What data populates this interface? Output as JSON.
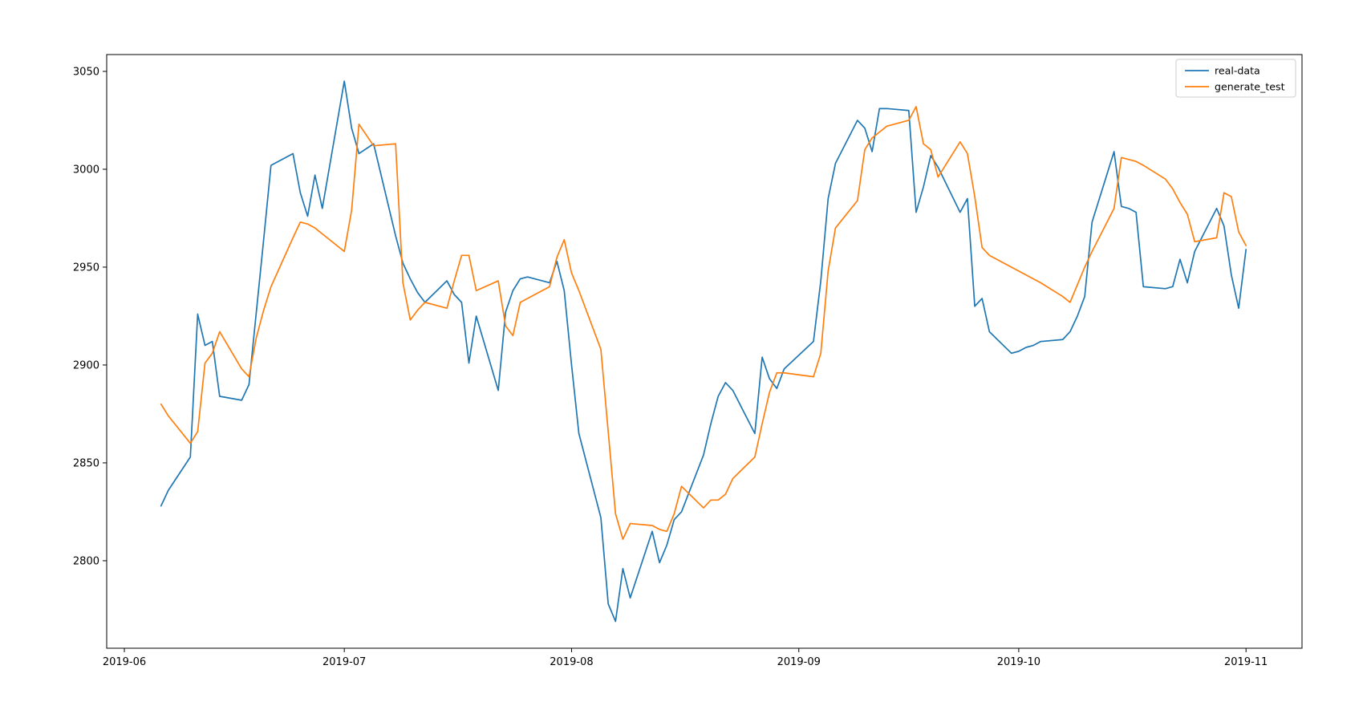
{
  "chart_data": {
    "type": "line",
    "title": "",
    "xlabel": "",
    "ylabel": "",
    "grid": false,
    "legend_position": "upper right",
    "legend_entries": [
      "real-data",
      "generate_test"
    ],
    "x_tick_labels": [
      "2019-06",
      "2019-07",
      "2019-08",
      "2019-09",
      "2019-10",
      "2019-11"
    ],
    "x_tick_dates": [
      "2019-06-01",
      "2019-07-01",
      "2019-08-01",
      "2019-09-01",
      "2019-10-01",
      "2019-11-01"
    ],
    "y_ticks": [
      2800,
      2850,
      2900,
      2950,
      3000,
      3050
    ],
    "ylim": [
      2755.3,
      3058.6
    ],
    "xlim_days_from_2019_06_01": [
      -2.41,
      160.64
    ],
    "dates": [
      "2019-06-06",
      "2019-06-07",
      "2019-06-10",
      "2019-06-11",
      "2019-06-12",
      "2019-06-13",
      "2019-06-14",
      "2019-06-17",
      "2019-06-18",
      "2019-06-19",
      "2019-06-20",
      "2019-06-21",
      "2019-06-24",
      "2019-06-25",
      "2019-06-26",
      "2019-06-27",
      "2019-06-28",
      "2019-07-01",
      "2019-07-02",
      "2019-07-03",
      "2019-07-05",
      "2019-07-08",
      "2019-07-09",
      "2019-07-10",
      "2019-07-11",
      "2019-07-12",
      "2019-07-15",
      "2019-07-16",
      "2019-07-17",
      "2019-07-18",
      "2019-07-19",
      "2019-07-22",
      "2019-07-23",
      "2019-07-24",
      "2019-07-25",
      "2019-07-26",
      "2019-07-29",
      "2019-07-30",
      "2019-07-31",
      "2019-08-01",
      "2019-08-02",
      "2019-08-05",
      "2019-08-06",
      "2019-08-07",
      "2019-08-08",
      "2019-08-09",
      "2019-08-12",
      "2019-08-13",
      "2019-08-14",
      "2019-08-15",
      "2019-08-16",
      "2019-08-19",
      "2019-08-20",
      "2019-08-21",
      "2019-08-22",
      "2019-08-23",
      "2019-08-26",
      "2019-08-27",
      "2019-08-28",
      "2019-08-29",
      "2019-08-30",
      "2019-09-03",
      "2019-09-04",
      "2019-09-05",
      "2019-09-06",
      "2019-09-09",
      "2019-09-10",
      "2019-09-11",
      "2019-09-12",
      "2019-09-13",
      "2019-09-16",
      "2019-09-17",
      "2019-09-18",
      "2019-09-19",
      "2019-09-20",
      "2019-09-23",
      "2019-09-24",
      "2019-09-25",
      "2019-09-26",
      "2019-09-27",
      "2019-09-30",
      "2019-10-01",
      "2019-10-02",
      "2019-10-03",
      "2019-10-04",
      "2019-10-07",
      "2019-10-08",
      "2019-10-09",
      "2019-10-10",
      "2019-10-11",
      "2019-10-14",
      "2019-10-15",
      "2019-10-16",
      "2019-10-17",
      "2019-10-18",
      "2019-10-21",
      "2019-10-22",
      "2019-10-23",
      "2019-10-24",
      "2019-10-25",
      "2019-10-28",
      "2019-10-29",
      "2019-10-30",
      "2019-10-31",
      "2019-11-01"
    ],
    "series": [
      {
        "name": "real-data",
        "color": "#1f77b4",
        "values": [
          2828,
          2836,
          2853,
          2926,
          2910,
          2912,
          2884,
          2882,
          2890,
          2927,
          2964,
          3002,
          3008,
          2988,
          2976,
          2997,
          2980,
          3045,
          3021,
          3008,
          3013,
          2966,
          2952,
          2944,
          2937,
          2932,
          2943,
          2936,
          2932,
          2901,
          2925,
          2887,
          2927,
          2938,
          2944,
          2945,
          2942,
          2953,
          2938,
          2900,
          2865,
          2822,
          2778,
          2769,
          2796,
          2781,
          2815,
          2799,
          2808,
          2821,
          2825,
          2854,
          2870,
          2884,
          2891,
          2887,
          2865,
          2904,
          2893,
          2888,
          2898,
          2912,
          2943,
          2985,
          3003,
          3025,
          3021,
          3009,
          3031,
          3031,
          3030,
          2978,
          2991,
          3007,
          3001,
          2978,
          2985,
          2930,
          2934,
          2917,
          2906,
          2907,
          2909,
          2910,
          2912,
          2913,
          2917,
          2925,
          2935,
          2973,
          3009,
          2981,
          2980,
          2978,
          2940,
          2939,
          2940,
          2954,
          2942,
          2958,
          2980,
          2971,
          2946,
          2929,
          2959
        ]
      },
      {
        "name": "generate_test",
        "color": "#ff7f0e",
        "values": [
          2880,
          2874,
          2860,
          2866,
          2901,
          2906,
          2917,
          2898,
          2894,
          2914,
          2928,
          2940,
          2965,
          2973,
          2972,
          2970,
          2967,
          2958,
          2979,
          3023,
          3012,
          3013,
          2942,
          2923,
          2928,
          2932,
          2929,
          2943,
          2956,
          2956,
          2938,
          2943,
          2920,
          2915,
          2932,
          2934,
          2940,
          2955,
          2964,
          2947,
          2938,
          2908,
          2866,
          2824,
          2811,
          2819,
          2818,
          2816,
          2815,
          2824,
          2838,
          2827,
          2831,
          2831,
          2834,
          2842,
          2853,
          2870,
          2886,
          2896,
          2896,
          2894,
          2906,
          2948,
          2970,
          2984,
          3010,
          3016,
          3019,
          3022,
          3025,
          3032,
          3013,
          3010,
          2996,
          3014,
          3008,
          2986,
          2960,
          2956,
          2950,
          2948,
          2946,
          2944,
          2942,
          2935,
          2932,
          2941,
          2950,
          2958,
          2980,
          3006,
          3005,
          3004,
          3002,
          2995,
          2990,
          2983,
          2977,
          2963,
          2965,
          2988,
          2986,
          2968,
          2961
        ]
      }
    ]
  }
}
